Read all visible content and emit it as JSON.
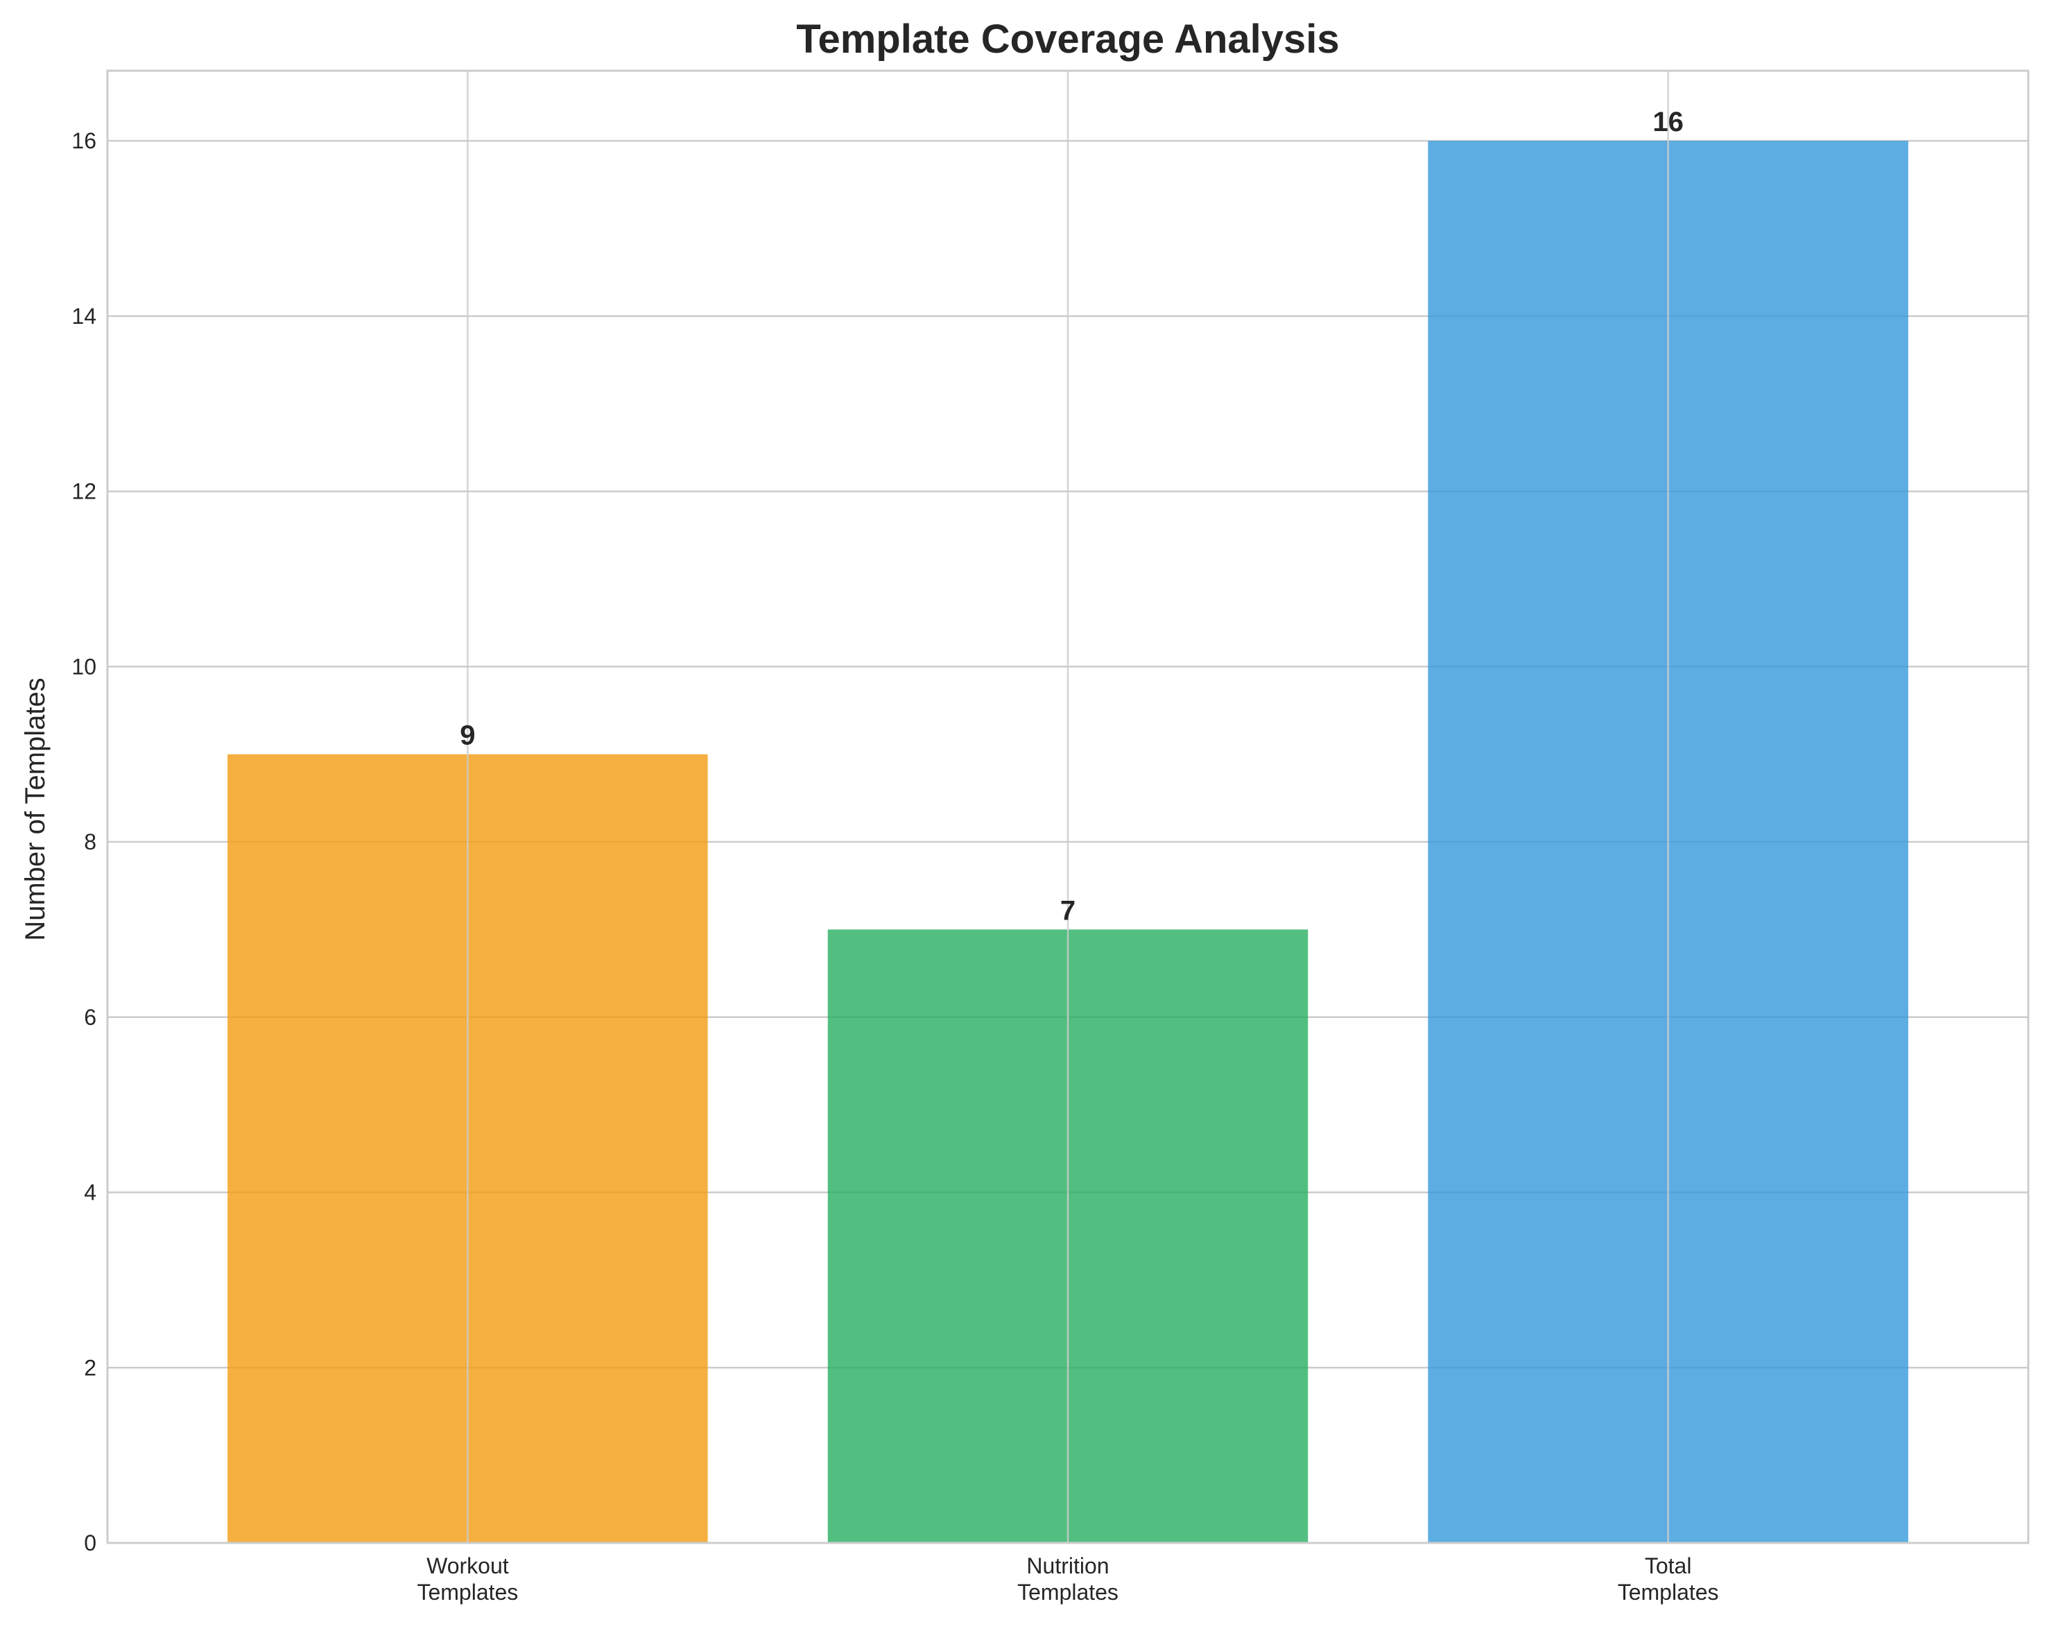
{
  "chart_data": {
    "type": "bar",
    "title": "Template Coverage Analysis",
    "xlabel": "",
    "ylabel": "Number of Templates",
    "categories": [
      [
        "Workout",
        "Templates"
      ],
      [
        "Nutrition",
        "Templates"
      ],
      [
        "Total",
        "Templates"
      ]
    ],
    "values": [
      9,
      7,
      16
    ],
    "data_labels": [
      "9",
      "7",
      "16"
    ],
    "colors": [
      "#F39C12",
      "#27AE60",
      "#3498DB"
    ],
    "bar_opacity": 0.8,
    "ylim": [
      0,
      16.8
    ],
    "yticks": [
      0,
      2,
      4,
      6,
      8,
      10,
      12,
      14,
      16
    ],
    "ytick_labels": [
      "0",
      "2",
      "4",
      "6",
      "8",
      "10",
      "12",
      "14",
      "16"
    ],
    "grid": true,
    "grid_color": "#CCCCCC",
    "spine_color": "#CCCCCC",
    "text_color": "#262626",
    "legend": "none"
  }
}
